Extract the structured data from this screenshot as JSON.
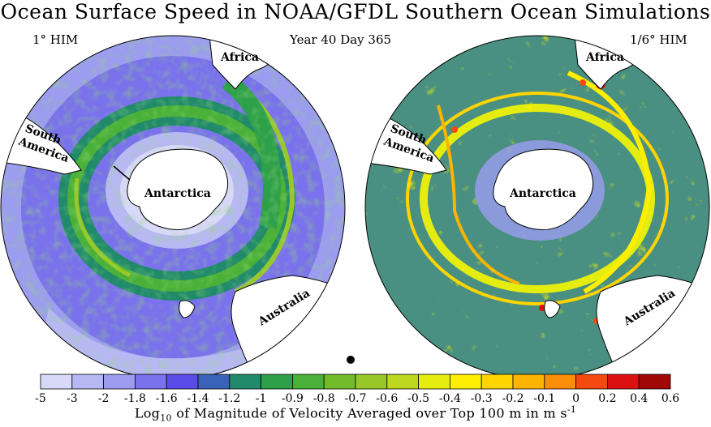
{
  "title": "Ocean Surface Speed in NOAA/GFDL Southern Ocean Simulations",
  "panels": {
    "left_label": "1° HIM",
    "center_label": "Year 40 Day 365",
    "right_label": "1/6° HIM"
  },
  "land_labels": {
    "africa": "Africa",
    "south": "South",
    "america": "America",
    "antarctica": "Antarctica",
    "australia": "Australia"
  },
  "colorbar": {
    "ticks": [
      "-5",
      "-3",
      "-2",
      "-1.8",
      "-1.6",
      "-1.4",
      "-1.2",
      "-1",
      "-0.9",
      "-0.8",
      "-0.7",
      "-0.6",
      "-0.5",
      "-0.4",
      "-0.3",
      "-0.2",
      "-0.1",
      "0",
      "0.2",
      "0.4",
      "0.6"
    ],
    "colors": [
      "#d8d8f8",
      "#b8b8f4",
      "#9c9cf0",
      "#7a72ec",
      "#5a4ce8",
      "#3a62b8",
      "#208a6a",
      "#2ea04a",
      "#4ab038",
      "#72bc2c",
      "#98c828",
      "#bcd820",
      "#e4ec10",
      "#ffee00",
      "#ffd400",
      "#fcb400",
      "#fa8e0a",
      "#f44a10",
      "#dc1010",
      "#a00808"
    ],
    "title_prefix": "Log",
    "title_sub": "10",
    "title_main": " of Magnitude of Velocity Averaged over Top 100 m in m s",
    "title_sup": "-1"
  }
}
